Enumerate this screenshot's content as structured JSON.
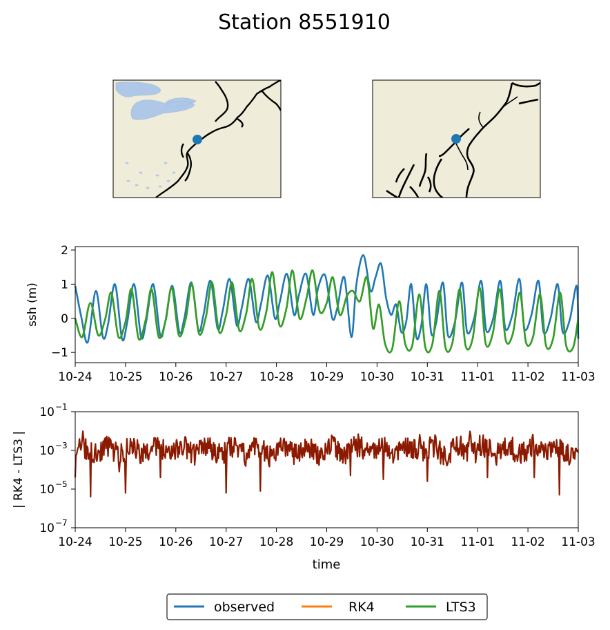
{
  "title": "Station 8551910",
  "colors": {
    "observed": "#1f77b4",
    "rk4": "#ff7f0e",
    "lts3": "#2ca02c",
    "difference": "#8b1a00",
    "land": "#efedda",
    "water": "#b0c8e8",
    "station_marker": "#1f77b4"
  },
  "maps": [
    {
      "name": "regional-map",
      "region": "US Northeast coast and Great Lakes",
      "marker": "station"
    },
    {
      "name": "local-map",
      "region": "Delaware and Chesapeake Bay area",
      "marker": "station"
    }
  ],
  "legend": {
    "placement": "bottom-center",
    "entries": [
      "observed",
      "RK4",
      "LTS3"
    ]
  },
  "chart_data": [
    {
      "type": "line",
      "name": "ssh-panel",
      "title": "",
      "xlabel": "",
      "ylabel": "ssh (m)",
      "xlim": [
        0,
        10
      ],
      "ylim": [
        -1.3,
        2.1
      ],
      "x_ticks": [
        0,
        1,
        2,
        3,
        4,
        5,
        6,
        7,
        8,
        9,
        10
      ],
      "x_tick_labels": [
        "10-24",
        "10-25",
        "10-26",
        "10-27",
        "10-28",
        "10-29",
        "10-30",
        "10-31",
        "11-01",
        "11-02",
        "11-03"
      ],
      "y_ticks": [
        -1,
        0,
        1,
        2
      ],
      "y_tick_labels": [
        "−1",
        "0",
        "1",
        "2"
      ],
      "grid": false,
      "x_unit": "days since 10-24",
      "series": [
        {
          "name": "observed",
          "x": [
            0.0,
            0.12,
            0.25,
            0.41,
            0.55,
            0.65,
            0.79,
            0.93,
            1.03,
            1.17,
            1.31,
            1.41,
            1.55,
            1.69,
            1.79,
            1.93,
            2.07,
            2.17,
            2.31,
            2.45,
            2.55,
            2.69,
            2.83,
            2.93,
            3.07,
            3.21,
            3.31,
            3.45,
            3.59,
            3.69,
            3.83,
            3.97,
            4.07,
            4.21,
            4.35,
            4.45,
            4.59,
            4.73,
            4.83,
            4.97,
            5.11,
            5.21,
            5.35,
            5.49,
            5.59,
            5.73,
            5.87,
            5.97,
            6.08,
            6.18,
            6.28,
            6.38,
            6.48,
            6.58,
            6.68,
            6.78,
            6.88,
            6.98,
            7.08,
            7.18,
            7.31,
            7.41,
            7.55,
            7.69,
            7.79,
            7.93,
            8.07,
            8.17,
            8.31,
            8.45,
            8.55,
            8.69,
            8.83,
            8.93,
            9.07,
            9.21,
            9.31,
            9.45,
            9.59,
            9.69,
            9.83,
            9.97,
            10.0
          ],
          "y": [
            0.95,
            0.05,
            -0.7,
            0.8,
            -0.55,
            -0.2,
            1.0,
            -0.6,
            -0.15,
            1.0,
            -0.55,
            -0.1,
            1.0,
            -0.5,
            -0.1,
            0.95,
            -0.4,
            0.0,
            1.05,
            -0.35,
            0.1,
            1.1,
            -0.3,
            0.2,
            1.15,
            -0.2,
            0.3,
            1.15,
            -0.1,
            0.4,
            1.25,
            0.0,
            0.5,
            1.3,
            0.1,
            0.7,
            1.3,
            0.1,
            0.9,
            1.25,
            0.0,
            0.3,
            1.2,
            -0.55,
            1.0,
            1.85,
            0.8,
            1.2,
            1.6,
            0.6,
            0.1,
            0.4,
            -0.4,
            -0.1,
            1.0,
            -0.55,
            -0.2,
            1.0,
            -0.45,
            -0.1,
            1.05,
            -0.5,
            -0.1,
            1.05,
            -0.4,
            0.0,
            1.1,
            -0.35,
            0.0,
            1.1,
            -0.3,
            0.1,
            1.15,
            -0.3,
            0.1,
            1.1,
            -0.4,
            0.0,
            1.0,
            -0.4,
            -0.05,
            0.95,
            -0.6
          ]
        },
        {
          "name": "RK4",
          "x": [
            0.0,
            0.14,
            0.3,
            0.46,
            0.6,
            0.72,
            0.86,
            1.0,
            1.12,
            1.26,
            1.4,
            1.52,
            1.66,
            1.8,
            1.92,
            2.06,
            2.2,
            2.32,
            2.46,
            2.6,
            2.72,
            2.86,
            3.0,
            3.12,
            3.26,
            3.4,
            3.52,
            3.66,
            3.8,
            3.92,
            4.06,
            4.2,
            4.32,
            4.46,
            4.6,
            4.72,
            4.86,
            5.0,
            5.12,
            5.26,
            5.4,
            5.52,
            5.66,
            5.8,
            5.92,
            6.04,
            6.16,
            6.3,
            6.44,
            6.56,
            6.7,
            6.84,
            6.96,
            7.1,
            7.24,
            7.36,
            7.5,
            7.64,
            7.76,
            7.9,
            8.04,
            8.16,
            8.3,
            8.44,
            8.56,
            8.7,
            8.84,
            8.96,
            9.1,
            9.24,
            9.36,
            9.5,
            9.64,
            9.76,
            9.9,
            10.0
          ],
          "y": [
            0.0,
            -0.55,
            0.45,
            -0.5,
            0.0,
            0.75,
            -0.55,
            -0.1,
            0.85,
            -0.6,
            -0.05,
            0.85,
            -0.55,
            -0.05,
            0.9,
            -0.5,
            0.0,
            1.0,
            -0.45,
            0.05,
            1.05,
            -0.4,
            0.1,
            1.05,
            -0.35,
            0.15,
            1.15,
            -0.3,
            0.2,
            1.35,
            -0.2,
            0.3,
            1.4,
            0.0,
            0.6,
            1.4,
            0.2,
            0.45,
            1.2,
            0.1,
            0.65,
            0.8,
            0.5,
            1.2,
            -0.3,
            0.4,
            -0.75,
            -0.9,
            0.5,
            -0.75,
            -0.8,
            0.7,
            -0.85,
            -0.75,
            0.8,
            -0.85,
            -0.7,
            0.85,
            -0.8,
            -0.6,
            0.9,
            -0.75,
            -0.45,
            0.85,
            -0.65,
            -0.45,
            0.75,
            -0.7,
            -0.55,
            0.7,
            -0.8,
            -0.6,
            0.75,
            -0.8,
            -0.85,
            0.0
          ]
        },
        {
          "name": "LTS3",
          "x": [
            0.0,
            0.14,
            0.3,
            0.46,
            0.6,
            0.72,
            0.86,
            1.0,
            1.12,
            1.26,
            1.4,
            1.52,
            1.66,
            1.8,
            1.92,
            2.06,
            2.2,
            2.32,
            2.46,
            2.6,
            2.72,
            2.86,
            3.0,
            3.12,
            3.26,
            3.4,
            3.52,
            3.66,
            3.8,
            3.92,
            4.06,
            4.2,
            4.32,
            4.46,
            4.6,
            4.72,
            4.86,
            5.0,
            5.12,
            5.26,
            5.4,
            5.52,
            5.66,
            5.8,
            5.92,
            6.04,
            6.16,
            6.3,
            6.44,
            6.56,
            6.7,
            6.84,
            6.96,
            7.1,
            7.24,
            7.36,
            7.5,
            7.64,
            7.76,
            7.9,
            8.04,
            8.16,
            8.3,
            8.44,
            8.56,
            8.7,
            8.84,
            8.96,
            9.1,
            9.24,
            9.36,
            9.5,
            9.64,
            9.76,
            9.9,
            10.0
          ],
          "y": [
            0.0,
            -0.55,
            0.45,
            -0.5,
            0.0,
            0.75,
            -0.55,
            -0.1,
            0.85,
            -0.6,
            -0.05,
            0.85,
            -0.55,
            -0.05,
            0.9,
            -0.5,
            0.0,
            1.0,
            -0.45,
            0.05,
            1.05,
            -0.4,
            0.1,
            1.05,
            -0.35,
            0.15,
            1.15,
            -0.3,
            0.2,
            1.35,
            -0.2,
            0.3,
            1.4,
            0.0,
            0.6,
            1.4,
            0.2,
            0.45,
            1.2,
            0.1,
            0.65,
            0.8,
            0.5,
            1.2,
            -0.3,
            0.4,
            -0.75,
            -0.9,
            0.5,
            -0.75,
            -0.8,
            0.7,
            -0.85,
            -0.75,
            0.8,
            -0.85,
            -0.7,
            0.85,
            -0.8,
            -0.6,
            0.9,
            -0.75,
            -0.45,
            0.85,
            -0.65,
            -0.45,
            0.75,
            -0.7,
            -0.55,
            0.7,
            -0.8,
            -0.6,
            0.75,
            -0.8,
            -0.85,
            0.0
          ]
        }
      ]
    },
    {
      "type": "line",
      "name": "difference-panel",
      "title": "",
      "xlabel": "time",
      "ylabel": "| RK4 - LTS3 |",
      "xlim": [
        0,
        10
      ],
      "ylim": [
        1e-07,
        0.1
      ],
      "yscale": "log",
      "x_ticks": [
        0,
        1,
        2,
        3,
        4,
        5,
        6,
        7,
        8,
        9,
        10
      ],
      "x_tick_labels": [
        "10-24",
        "10-25",
        "10-26",
        "10-27",
        "10-28",
        "10-29",
        "10-30",
        "10-31",
        "11-01",
        "11-02",
        "11-03"
      ],
      "y_ticks": [
        1e-07,
        1e-05,
        0.001,
        0.1
      ],
      "y_tick_labels": [
        "10",
        "10",
        "10",
        "10"
      ],
      "y_tick_exponents": [
        "−7",
        "−5",
        "−3",
        "−1"
      ],
      "grid": false,
      "series": [
        {
          "name": "| RK4 - LTS3 |",
          "seed": 8551910,
          "base_log10": -3.0,
          "spikes": [
            {
              "x": 0.0,
              "log10": -4.4
            },
            {
              "x": 0.3,
              "log10": -5.4
            },
            {
              "x": 0.87,
              "log10": -4.1
            },
            {
              "x": 1.0,
              "log10": -5.2
            },
            {
              "x": 1.7,
              "log10": -4.4
            },
            {
              "x": 3.0,
              "log10": -5.2
            },
            {
              "x": 3.68,
              "log10": -5.1
            },
            {
              "x": 5.47,
              "log10": -4.3
            },
            {
              "x": 6.13,
              "log10": -4.5
            },
            {
              "x": 7.0,
              "log10": -4.6
            },
            {
              "x": 8.2,
              "log10": -4.4
            },
            {
              "x": 9.13,
              "log10": -4.4
            },
            {
              "x": 9.62,
              "log10": -5.3
            }
          ],
          "peaks": [
            {
              "x": 0.15,
              "log10": -2.0
            },
            {
              "x": 0.7,
              "log10": -2.3
            },
            {
              "x": 6.85,
              "log10": -2.1
            },
            {
              "x": 7.85,
              "log10": -1.9
            }
          ]
        }
      ]
    }
  ]
}
